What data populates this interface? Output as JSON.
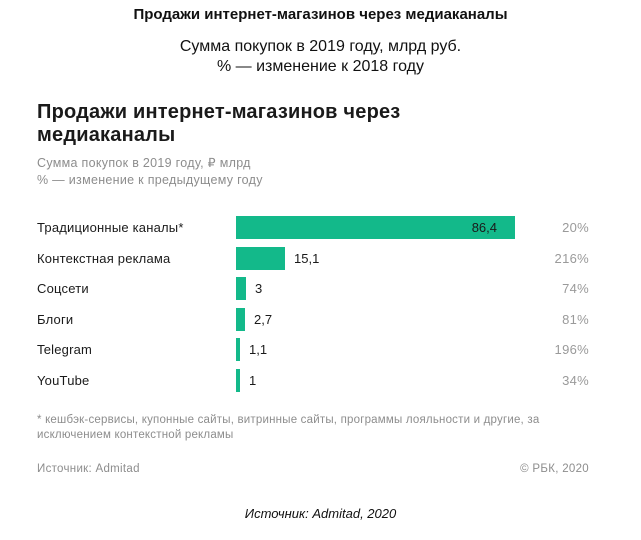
{
  "outer": {
    "title": "Продажи интернет-магазинов через медиаканалы",
    "subtitle_line1": "Сумма покупок в 2019 году, млрд руб.",
    "subtitle_line2": "% — изменение к 2018 году",
    "source": "Источник: Admitad, 2020"
  },
  "card": {
    "title": "Продажи интернет-магазинов через медиаканалы",
    "subtitle_line1": "Сумма покупок в 2019 году, ₽ млрд",
    "subtitle_line2": "% — изменение к предыдущему году",
    "footnote": "* кешбэк-сервисы, купонные сайты, витринные сайты, программы лояльности и другие, за исключением контекстной рекламы",
    "source": "Источник: Admitad",
    "copyright": "© РБК, 2020"
  },
  "chart_data": {
    "type": "bar",
    "orientation": "horizontal",
    "categories": [
      "Традиционные каналы*",
      "Контекстная реклама",
      "Соцсети",
      "Блоги",
      "Telegram",
      "YouTube"
    ],
    "values": [
      86.4,
      15.1,
      3,
      2.7,
      1.1,
      1
    ],
    "value_labels": [
      "86,4",
      "15,1",
      "3",
      "2,7",
      "1,1",
      "1"
    ],
    "change_labels": [
      "20%",
      "216%",
      "74%",
      "81%",
      "196%",
      "34%"
    ],
    "bar_color": "#13b98a",
    "xlim": [
      0,
      86.4
    ]
  }
}
